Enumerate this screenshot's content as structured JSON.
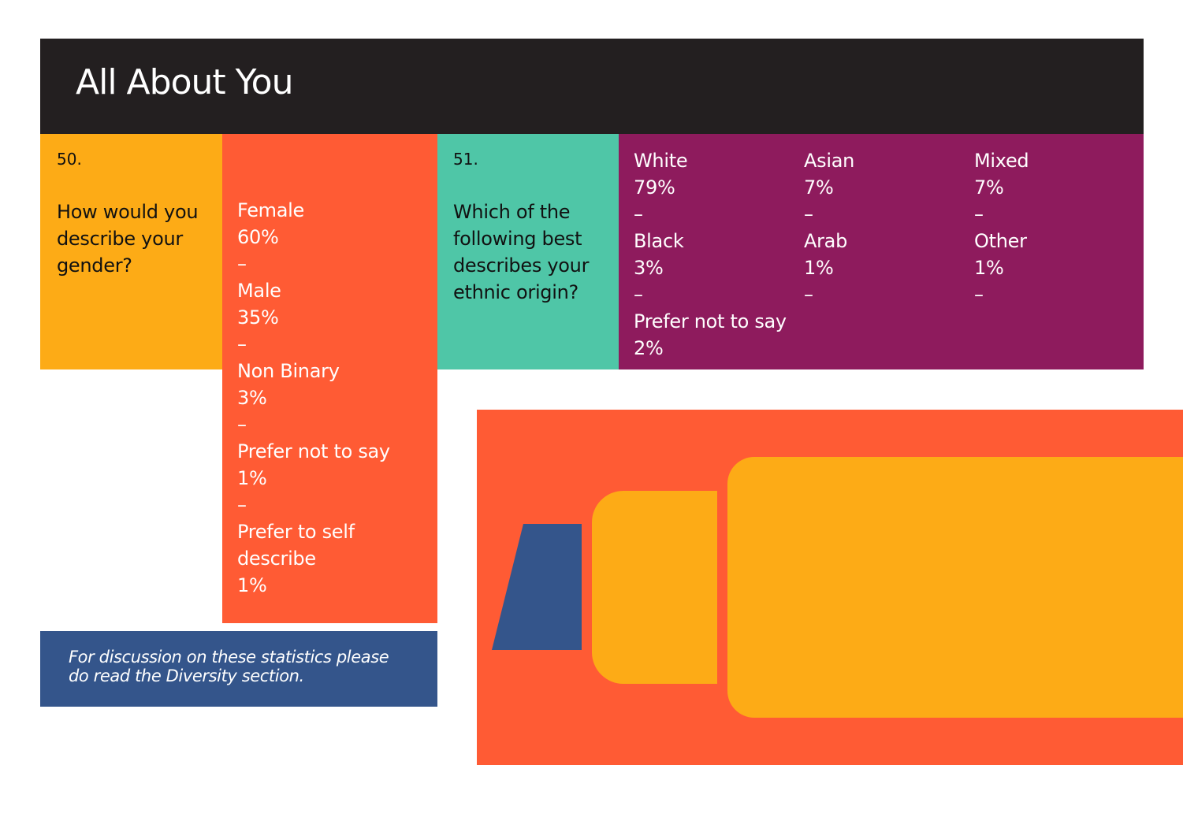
{
  "header": {
    "title": "All About You"
  },
  "q50": {
    "number": "50.",
    "question_lines": [
      "How would you",
      "describe your",
      "gender?"
    ],
    "answers": [
      {
        "label": "Female",
        "value": "60%"
      },
      {
        "label": "Male",
        "value": "35%"
      },
      {
        "label": "Non Binary",
        "value": "3%"
      },
      {
        "label": "Prefer not to say",
        "value": "1%"
      },
      {
        "label": "Prefer to self",
        "label2": "describe",
        "value": "1%"
      }
    ],
    "separator": "–"
  },
  "q51": {
    "number": "51.",
    "question_lines": [
      "Which of the",
      "following best",
      "describes your",
      "ethnic origin?"
    ],
    "columns": [
      [
        {
          "label": "White",
          "value": "79%"
        },
        {
          "label": "Black",
          "value": "3%"
        },
        {
          "label": "Prefer not to say",
          "value": "2%"
        }
      ],
      [
        {
          "label": "Asian",
          "value": "7%"
        },
        {
          "label": "Arab",
          "value": "1%"
        }
      ],
      [
        {
          "label": "Mixed",
          "value": "7%"
        },
        {
          "label": "Other",
          "value": "1%"
        }
      ]
    ],
    "separator": "–"
  },
  "note": {
    "lines": [
      "For discussion on these statistics please",
      "do read the Diversity section."
    ]
  },
  "colors": {
    "header_bg": "#231f20",
    "q50_bg": "#fdab16",
    "a50_bg": "#ff5b34",
    "q51_bg": "#4fc6a7",
    "a51_bg": "#8e1b5d",
    "note_bg": "#34558b",
    "illustration_bg": "#ff5b34",
    "illustration_accent": "#fdab16",
    "illustration_blue": "#34558b"
  },
  "illustration": {
    "icon": "abstract-blocks-illustration"
  }
}
